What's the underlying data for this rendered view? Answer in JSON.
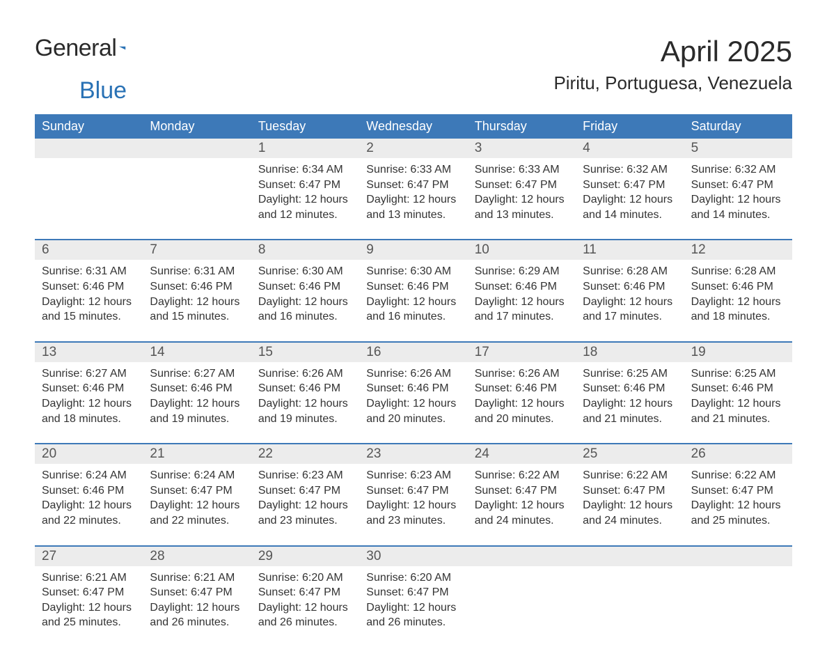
{
  "logo": {
    "text1": "General",
    "text2": "Blue"
  },
  "title": "April 2025",
  "location": "Piritu, Portuguesa, Venezuela",
  "colors": {
    "header_bg": "#3d79b8",
    "header_text": "#ffffff",
    "daynum_bg": "#ececec",
    "week_border": "#3d79b8",
    "body_text": "#333333",
    "logo_blue": "#2a72b5"
  },
  "day_labels": [
    "Sunday",
    "Monday",
    "Tuesday",
    "Wednesday",
    "Thursday",
    "Friday",
    "Saturday"
  ],
  "weeks": [
    [
      null,
      null,
      {
        "n": "1",
        "sr": "6:34 AM",
        "ss": "6:47 PM",
        "dl": "12 hours and 12 minutes."
      },
      {
        "n": "2",
        "sr": "6:33 AM",
        "ss": "6:47 PM",
        "dl": "12 hours and 13 minutes."
      },
      {
        "n": "3",
        "sr": "6:33 AM",
        "ss": "6:47 PM",
        "dl": "12 hours and 13 minutes."
      },
      {
        "n": "4",
        "sr": "6:32 AM",
        "ss": "6:47 PM",
        "dl": "12 hours and 14 minutes."
      },
      {
        "n": "5",
        "sr": "6:32 AM",
        "ss": "6:47 PM",
        "dl": "12 hours and 14 minutes."
      }
    ],
    [
      {
        "n": "6",
        "sr": "6:31 AM",
        "ss": "6:46 PM",
        "dl": "12 hours and 15 minutes."
      },
      {
        "n": "7",
        "sr": "6:31 AM",
        "ss": "6:46 PM",
        "dl": "12 hours and 15 minutes."
      },
      {
        "n": "8",
        "sr": "6:30 AM",
        "ss": "6:46 PM",
        "dl": "12 hours and 16 minutes."
      },
      {
        "n": "9",
        "sr": "6:30 AM",
        "ss": "6:46 PM",
        "dl": "12 hours and 16 minutes."
      },
      {
        "n": "10",
        "sr": "6:29 AM",
        "ss": "6:46 PM",
        "dl": "12 hours and 17 minutes."
      },
      {
        "n": "11",
        "sr": "6:28 AM",
        "ss": "6:46 PM",
        "dl": "12 hours and 17 minutes."
      },
      {
        "n": "12",
        "sr": "6:28 AM",
        "ss": "6:46 PM",
        "dl": "12 hours and 18 minutes."
      }
    ],
    [
      {
        "n": "13",
        "sr": "6:27 AM",
        "ss": "6:46 PM",
        "dl": "12 hours and 18 minutes."
      },
      {
        "n": "14",
        "sr": "6:27 AM",
        "ss": "6:46 PM",
        "dl": "12 hours and 19 minutes."
      },
      {
        "n": "15",
        "sr": "6:26 AM",
        "ss": "6:46 PM",
        "dl": "12 hours and 19 minutes."
      },
      {
        "n": "16",
        "sr": "6:26 AM",
        "ss": "6:46 PM",
        "dl": "12 hours and 20 minutes."
      },
      {
        "n": "17",
        "sr": "6:26 AM",
        "ss": "6:46 PM",
        "dl": "12 hours and 20 minutes."
      },
      {
        "n": "18",
        "sr": "6:25 AM",
        "ss": "6:46 PM",
        "dl": "12 hours and 21 minutes."
      },
      {
        "n": "19",
        "sr": "6:25 AM",
        "ss": "6:46 PM",
        "dl": "12 hours and 21 minutes."
      }
    ],
    [
      {
        "n": "20",
        "sr": "6:24 AM",
        "ss": "6:46 PM",
        "dl": "12 hours and 22 minutes."
      },
      {
        "n": "21",
        "sr": "6:24 AM",
        "ss": "6:47 PM",
        "dl": "12 hours and 22 minutes."
      },
      {
        "n": "22",
        "sr": "6:23 AM",
        "ss": "6:47 PM",
        "dl": "12 hours and 23 minutes."
      },
      {
        "n": "23",
        "sr": "6:23 AM",
        "ss": "6:47 PM",
        "dl": "12 hours and 23 minutes."
      },
      {
        "n": "24",
        "sr": "6:22 AM",
        "ss": "6:47 PM",
        "dl": "12 hours and 24 minutes."
      },
      {
        "n": "25",
        "sr": "6:22 AM",
        "ss": "6:47 PM",
        "dl": "12 hours and 24 minutes."
      },
      {
        "n": "26",
        "sr": "6:22 AM",
        "ss": "6:47 PM",
        "dl": "12 hours and 25 minutes."
      }
    ],
    [
      {
        "n": "27",
        "sr": "6:21 AM",
        "ss": "6:47 PM",
        "dl": "12 hours and 25 minutes."
      },
      {
        "n": "28",
        "sr": "6:21 AM",
        "ss": "6:47 PM",
        "dl": "12 hours and 26 minutes."
      },
      {
        "n": "29",
        "sr": "6:20 AM",
        "ss": "6:47 PM",
        "dl": "12 hours and 26 minutes."
      },
      {
        "n": "30",
        "sr": "6:20 AM",
        "ss": "6:47 PM",
        "dl": "12 hours and 26 minutes."
      },
      null,
      null,
      null
    ]
  ],
  "labels": {
    "sunrise": "Sunrise:",
    "sunset": "Sunset:",
    "daylight": "Daylight:"
  }
}
